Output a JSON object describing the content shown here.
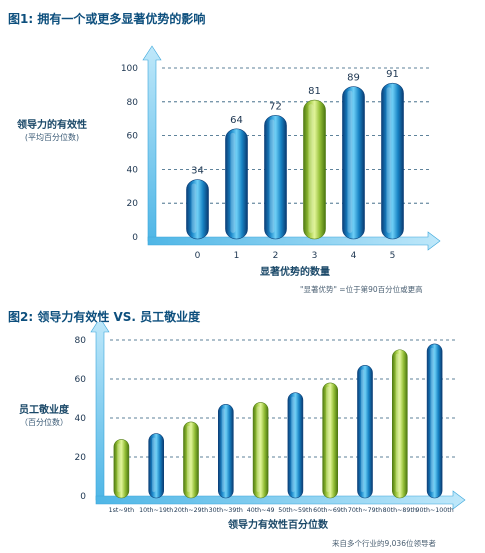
{
  "chart_data": [
    {
      "type": "bar",
      "title": "图1: 拥有一个或更多显著优势的影响",
      "ylabel": "领导力的有效性",
      "ylabel_sub": "(平均百分位数)",
      "xlabel": "显著优势的数量",
      "note": "\"显著优势\" =位于第90百分位或更高",
      "categories": [
        "0",
        "1",
        "2",
        "3",
        "4",
        "5"
      ],
      "values": [
        34,
        64,
        72,
        81,
        89,
        91
      ],
      "ylim": [
        0,
        100
      ],
      "yticks": [
        "0",
        "20",
        "40",
        "60",
        "80",
        "100"
      ],
      "grid": "dashed-horizontal",
      "highlight_index": 3,
      "colors": {
        "bar": "#1a7fc0",
        "highlight": "#9cc63b",
        "axis": "#4fb6e6"
      }
    },
    {
      "type": "bar",
      "title": "图2: 领导力有效性 VS. 员工敬业度",
      "ylabel": "员工敬业度",
      "ylabel_sub": "（百分位数）",
      "xlabel": "领导力有效性百分位数",
      "note": "来自多个行业的9,036位领导者",
      "categories": [
        "1st~9th",
        "10th~19th",
        "20th~29th",
        "30th~39th",
        "40th~49",
        "50th~59th",
        "60th~69th",
        "70th~79th",
        "80th~89th",
        "90th~100th"
      ],
      "values": [
        29,
        32,
        38,
        47,
        48,
        53,
        58,
        67,
        75,
        78
      ],
      "ylim": [
        0,
        80
      ],
      "yticks": [
        "0",
        "20",
        "40",
        "60",
        "80"
      ],
      "grid": "dashed-horizontal",
      "bar_colors": [
        "green",
        "blue",
        "green",
        "blue",
        "green",
        "blue",
        "green",
        "blue",
        "green",
        "blue"
      ],
      "colors": {
        "bar": "#1a7fc0",
        "highlight": "#9cc63b",
        "axis": "#4fb6e6"
      }
    }
  ]
}
